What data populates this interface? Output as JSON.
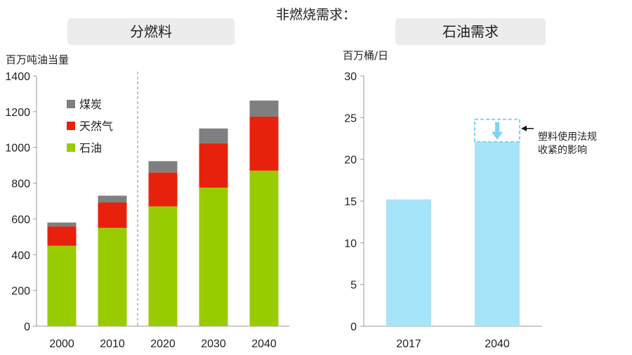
{
  "title": "非燃烧需求：",
  "chart_data": [
    {
      "type": "bar",
      "stacked": true,
      "panel_title": "分燃料",
      "ylabel": "百万吨油当量",
      "ylim": [
        0,
        1400
      ],
      "yticks": [
        0,
        200,
        400,
        600,
        800,
        1000,
        1200,
        1400
      ],
      "categories": [
        "2000",
        "2010",
        "2020",
        "2030",
        "2040"
      ],
      "series": [
        {
          "name": "石油",
          "color": "#99cc00",
          "values": [
            450,
            550,
            670,
            775,
            870
          ]
        },
        {
          "name": "天然气",
          "color": "#e8210c",
          "values": [
            108,
            142,
            190,
            248,
            302
          ]
        },
        {
          "name": "煤炭",
          "color": "#7f7f7f",
          "values": [
            22,
            38,
            63,
            83,
            90
          ]
        }
      ],
      "legend": "top-left",
      "divider_after_category": "2010"
    },
    {
      "type": "bar",
      "panel_title": "石油需求",
      "ylabel": "百万桶/日",
      "ylim": [
        0,
        30
      ],
      "yticks": [
        0,
        5,
        10,
        15,
        20,
        25,
        30
      ],
      "categories": [
        "2017",
        "2040"
      ],
      "series": [
        {
          "color": "#a6e4fa",
          "values": [
            15.2,
            22.1
          ]
        }
      ],
      "dashed_extension": {
        "category": "2040",
        "from": 22.1,
        "to": 24.8,
        "color": "#7fd3f0"
      },
      "annotation": "塑料使用法规\n收紧的影响"
    }
  ]
}
